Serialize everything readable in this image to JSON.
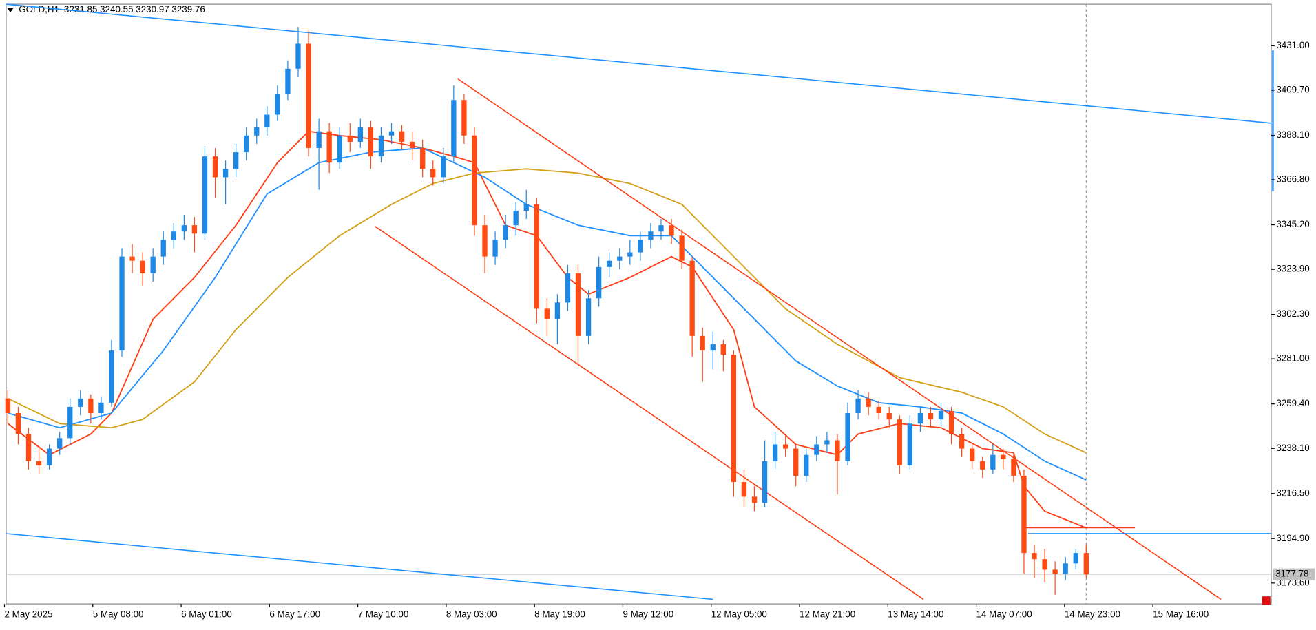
{
  "chart_data": {
    "type": "candlestick",
    "symbol": "GOLD,H1",
    "ohlc_text": "3231.85 3240.55 3230.97 3239.76",
    "up_color": "#1e88e5",
    "down_color": "#ff4a12",
    "ylim": [
      3163.6,
      3450.9
    ],
    "yticks": [
      {
        "value": 3431.0,
        "label": "3431.00"
      },
      {
        "value": 3409.7,
        "label": "3409.70"
      },
      {
        "value": 3388.1,
        "label": "3388.10"
      },
      {
        "value": 3366.8,
        "label": "3366.80"
      },
      {
        "value": 3345.2,
        "label": "3345.20"
      },
      {
        "value": 3323.9,
        "label": "3323.90"
      },
      {
        "value": 3302.3,
        "label": "3302.30"
      },
      {
        "value": 3281.0,
        "label": "3281.00"
      },
      {
        "value": 3259.4,
        "label": "3259.40"
      },
      {
        "value": 3238.1,
        "label": "3238.10"
      },
      {
        "value": 3216.5,
        "label": "3216.50"
      },
      {
        "value": 3194.9,
        "label": "3194.90"
      },
      {
        "value": 3173.6,
        "label": "3173.60"
      }
    ],
    "current_price": {
      "value": 3177.78,
      "label": "3177.78"
    },
    "x_labels": [
      "2 May 2025",
      "5 May 08:00",
      "6 May 01:00",
      "6 May 17:00",
      "7 May 10:00",
      "8 May 03:00",
      "8 May 19:00",
      "9 May 12:00",
      "12 May 05:00",
      "12 May 21:00",
      "13 May 14:00",
      "14 May 07:00",
      "14 May 23:00",
      "15 May 16:00"
    ],
    "candles": [
      [
        3262,
        3266,
        3250,
        3255
      ],
      [
        3255,
        3258,
        3240,
        3245
      ],
      [
        3245,
        3248,
        3228,
        3232
      ],
      [
        3232,
        3238,
        3226,
        3230
      ],
      [
        3230,
        3240,
        3228,
        3238
      ],
      [
        3238,
        3246,
        3235,
        3243
      ],
      [
        3243,
        3262,
        3240,
        3258
      ],
      [
        3258,
        3266,
        3254,
        3262
      ],
      [
        3262,
        3264,
        3250,
        3255
      ],
      [
        3255,
        3263,
        3252,
        3260
      ],
      [
        3260,
        3290,
        3258,
        3285
      ],
      [
        3285,
        3334,
        3282,
        3330
      ],
      [
        3330,
        3336,
        3322,
        3328
      ],
      [
        3328,
        3332,
        3316,
        3322
      ],
      [
        3322,
        3334,
        3318,
        3330
      ],
      [
        3330,
        3342,
        3326,
        3338
      ],
      [
        3338,
        3346,
        3334,
        3342
      ],
      [
        3342,
        3350,
        3338,
        3345
      ],
      [
        3345,
        3349,
        3332,
        3341
      ],
      [
        3341,
        3383,
        3338,
        3378
      ],
      [
        3378,
        3382,
        3358,
        3368
      ],
      [
        3368,
        3376,
        3355,
        3372
      ],
      [
        3372,
        3384,
        3368,
        3380
      ],
      [
        3380,
        3392,
        3376,
        3388
      ],
      [
        3388,
        3396,
        3384,
        3392
      ],
      [
        3392,
        3402,
        3388,
        3398
      ],
      [
        3398,
        3412,
        3395,
        3408
      ],
      [
        3408,
        3424,
        3405,
        3420
      ],
      [
        3420,
        3440,
        3416,
        3432
      ],
      [
        3432,
        3438,
        3378,
        3382
      ],
      [
        3382,
        3396,
        3362,
        3390
      ],
      [
        3390,
        3394,
        3370,
        3375
      ],
      [
        3375,
        3392,
        3372,
        3388
      ],
      [
        3388,
        3394,
        3380,
        3385
      ],
      [
        3385,
        3396,
        3382,
        3392
      ],
      [
        3392,
        3395,
        3372,
        3378
      ],
      [
        3378,
        3392,
        3375,
        3388
      ],
      [
        3388,
        3394,
        3384,
        3390
      ],
      [
        3390,
        3393,
        3381,
        3385
      ],
      [
        3385,
        3390,
        3376,
        3382
      ],
      [
        3382,
        3386,
        3368,
        3372
      ],
      [
        3372,
        3376,
        3364,
        3368
      ],
      [
        3368,
        3382,
        3365,
        3378
      ],
      [
        3378,
        3412,
        3375,
        3405
      ],
      [
        3405,
        3408,
        3384,
        3388
      ],
      [
        3388,
        3392,
        3340,
        3345
      ],
      [
        3345,
        3350,
        3322,
        3330
      ],
      [
        3330,
        3342,
        3326,
        3338
      ],
      [
        3338,
        3350,
        3334,
        3345
      ],
      [
        3345,
        3356,
        3340,
        3352
      ],
      [
        3352,
        3362,
        3348,
        3355
      ],
      [
        3355,
        3358,
        3298,
        3305
      ],
      [
        3305,
        3310,
        3292,
        3300
      ],
      [
        3300,
        3312,
        3288,
        3308
      ],
      [
        3308,
        3326,
        3304,
        3322
      ],
      [
        3322,
        3326,
        3278,
        3292
      ],
      [
        3292,
        3314,
        3288,
        3310
      ],
      [
        3310,
        3330,
        3306,
        3325
      ],
      [
        3325,
        3332,
        3320,
        3328
      ],
      [
        3328,
        3334,
        3324,
        3330
      ],
      [
        3330,
        3338,
        3326,
        3332
      ],
      [
        3332,
        3342,
        3328,
        3338
      ],
      [
        3338,
        3346,
        3334,
        3342
      ],
      [
        3342,
        3348,
        3338,
        3345
      ],
      [
        3345,
        3348,
        3336,
        3340
      ],
      [
        3340,
        3343,
        3324,
        3328
      ],
      [
        3328,
        3330,
        3282,
        3292
      ],
      [
        3292,
        3296,
        3270,
        3285
      ],
      [
        3285,
        3294,
        3276,
        3288
      ],
      [
        3288,
        3290,
        3275,
        3283
      ],
      [
        3283,
        3285,
        3215,
        3222
      ],
      [
        3222,
        3228,
        3210,
        3215
      ],
      [
        3215,
        3220,
        3208,
        3212
      ],
      [
        3212,
        3242,
        3210,
        3232
      ],
      [
        3232,
        3246,
        3228,
        3240
      ],
      [
        3240,
        3244,
        3234,
        3238
      ],
      [
        3238,
        3240,
        3220,
        3225
      ],
      [
        3225,
        3238,
        3222,
        3235
      ],
      [
        3235,
        3244,
        3232,
        3240
      ],
      [
        3240,
        3246,
        3236,
        3242
      ],
      [
        3242,
        3245,
        3216,
        3232
      ],
      [
        3232,
        3260,
        3230,
        3255
      ],
      [
        3255,
        3266,
        3252,
        3262
      ],
      [
        3262,
        3265,
        3254,
        3258
      ],
      [
        3258,
        3261,
        3252,
        3255
      ],
      [
        3255,
        3258,
        3248,
        3252
      ],
      [
        3252,
        3254,
        3226,
        3230
      ],
      [
        3230,
        3254,
        3228,
        3250
      ],
      [
        3250,
        3258,
        3246,
        3255
      ],
      [
        3255,
        3258,
        3248,
        3252
      ],
      [
        3252,
        3260,
        3249,
        3256
      ],
      [
        3256,
        3258,
        3240,
        3245
      ],
      [
        3245,
        3248,
        3234,
        3238
      ],
      [
        3238,
        3240,
        3228,
        3232
      ],
      [
        3232,
        3234,
        3224,
        3228
      ],
      [
        3228,
        3240,
        3226,
        3235
      ],
      [
        3235,
        3238,
        3228,
        3233
      ],
      [
        3233,
        3236,
        3222,
        3225
      ],
      [
        3225,
        3228,
        3178,
        3188
      ],
      [
        3188,
        3192,
        3176,
        3185
      ],
      [
        3185,
        3190,
        3174,
        3180
      ],
      [
        3180,
        3184,
        3168,
        3178
      ],
      [
        3178,
        3186,
        3175,
        3183
      ],
      [
        3183,
        3190,
        3180,
        3188
      ],
      [
        3188,
        3192,
        3176,
        3177.78
      ]
    ],
    "series": [
      {
        "color": "#ff3d14",
        "x": [
          0,
          4,
          8,
          10,
          14,
          18,
          22,
          26,
          29,
          32,
          36,
          40,
          43,
          45,
          48,
          51,
          54,
          56,
          60,
          64,
          66,
          70,
          72,
          76,
          80,
          82,
          86,
          90,
          94,
          97,
          98,
          100,
          104
        ],
        "values": [
          3250,
          3235,
          3245,
          3255,
          3300,
          3320,
          3345,
          3375,
          3390,
          3388,
          3386,
          3382,
          3378,
          3375,
          3345,
          3340,
          3320,
          3312,
          3320,
          3330,
          3325,
          3295,
          3258,
          3240,
          3235,
          3245,
          3250,
          3248,
          3238,
          3236,
          3220,
          3208,
          3200
        ]
      },
      {
        "color": "#1e90ff",
        "x": [
          0,
          5,
          10,
          15,
          20,
          25,
          30,
          35,
          40,
          43,
          46,
          50,
          55,
          60,
          64,
          68,
          72,
          76,
          80,
          84,
          88,
          92,
          96,
          100,
          104
        ],
        "values": [
          3255,
          3248,
          3255,
          3285,
          3320,
          3360,
          3375,
          3380,
          3382,
          3375,
          3368,
          3355,
          3345,
          3340,
          3340,
          3320,
          3300,
          3280,
          3268,
          3260,
          3258,
          3255,
          3245,
          3232,
          3223
        ]
      },
      {
        "color": "#d4a017",
        "x": [
          0,
          5,
          10,
          13,
          18,
          22,
          27,
          32,
          37,
          41,
          45,
          50,
          55,
          60,
          65,
          70,
          75,
          80,
          86,
          92,
          96,
          100,
          104
        ],
        "values": [
          3262,
          3250,
          3248,
          3252,
          3270,
          3295,
          3320,
          3340,
          3355,
          3365,
          3370,
          3372,
          3370,
          3365,
          3355,
          3330,
          3305,
          3288,
          3272,
          3265,
          3258,
          3245,
          3236
        ]
      }
    ],
    "lines": [
      {
        "color": "#1e90ff",
        "x": [
          -0.2,
          121.9
        ],
        "y": [
          3450.9,
          3393.9
        ]
      },
      {
        "color": "#1e90ff",
        "x": [
          -0.2,
          68.0
        ],
        "y": [
          3197.3,
          3165.8
        ]
      },
      {
        "color": "#ff3d14",
        "x": [
          43.4,
          117.0
        ],
        "y": [
          3415.1,
          3165.8
        ]
      },
      {
        "color": "#ff3d14",
        "x": [
          35.4,
          88.3
        ],
        "y": [
          3344.5,
          3165.8
        ]
      },
      {
        "color": "#ff3d14",
        "x": [
          98.0,
          108.7
        ],
        "y": [
          3200.1,
          3200.1
        ]
      },
      {
        "color": "#1e90ff",
        "x": [
          98.4,
          121.9
        ],
        "y": [
          3197.3,
          3197.3
        ]
      }
    ]
  }
}
